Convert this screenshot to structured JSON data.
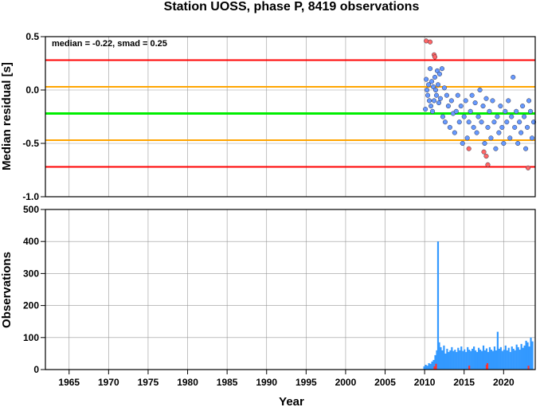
{
  "chart_data": [
    {
      "type": "scatter",
      "title": "Station UOSS, phase P, 8419 observations",
      "ylabel": "Median residual [s]",
      "annotation": "median = -0.22, smad = 0.25",
      "xlim": [
        1962,
        2024
      ],
      "ylim": [
        -1.0,
        0.5
      ],
      "yticks": [
        0.5,
        0.0,
        -0.5,
        -1.0
      ],
      "ytick_labels": [
        "0.5",
        "0.0",
        "-0.5",
        "-1.0"
      ],
      "grid": true,
      "reference_lines": [
        {
          "y": 0.28,
          "color": "#ff0000"
        },
        {
          "y": 0.03,
          "color": "#ffa500"
        },
        {
          "y": -0.22,
          "color": "#00ee00"
        },
        {
          "y": -0.47,
          "color": "#ffa500"
        },
        {
          "y": -0.72,
          "color": "#ff0000"
        }
      ],
      "series": [
        {
          "color": "#6699ff",
          "points": [
            [
              2010.1,
              -0.18
            ],
            [
              2010.2,
              0.1
            ],
            [
              2010.3,
              0.0
            ],
            [
              2010.4,
              -0.05
            ],
            [
              2010.5,
              0.05
            ],
            [
              2010.6,
              -0.1
            ],
            [
              2010.7,
              0.2
            ],
            [
              2010.8,
              -0.15
            ],
            [
              2010.9,
              0.08
            ],
            [
              2011.0,
              -0.2
            ],
            [
              2011.1,
              0.03
            ],
            [
              2011.2,
              -0.1
            ],
            [
              2011.3,
              0.12
            ],
            [
              2011.4,
              0.0
            ],
            [
              2011.5,
              -0.05
            ],
            [
              2011.6,
              0.18
            ],
            [
              2011.7,
              0.05
            ],
            [
              2011.8,
              -0.12
            ],
            [
              2011.9,
              0.15
            ],
            [
              2012.0,
              -0.08
            ],
            [
              2012.2,
              0.2
            ],
            [
              2012.3,
              -0.25
            ],
            [
              2012.5,
              0.02
            ],
            [
              2012.6,
              -0.3
            ],
            [
              2012.8,
              -0.05
            ],
            [
              2013.0,
              -0.15
            ],
            [
              2013.2,
              -0.35
            ],
            [
              2013.4,
              -0.1
            ],
            [
              2013.6,
              -0.22
            ],
            [
              2013.8,
              -0.4
            ],
            [
              2014.0,
              -0.2
            ],
            [
              2014.2,
              -0.05
            ],
            [
              2014.4,
              -0.3
            ],
            [
              2014.6,
              -0.15
            ],
            [
              2014.8,
              -0.5
            ],
            [
              2015.0,
              -0.25
            ],
            [
              2015.2,
              -0.1
            ],
            [
              2015.4,
              -0.45
            ],
            [
              2015.6,
              -0.3
            ],
            [
              2015.8,
              -0.2
            ],
            [
              2016.0,
              -0.05
            ],
            [
              2016.2,
              -0.35
            ],
            [
              2016.4,
              -0.12
            ],
            [
              2016.6,
              -0.4
            ],
            [
              2016.8,
              -0.25
            ],
            [
              2017.0,
              0.0
            ],
            [
              2017.2,
              -0.3
            ],
            [
              2017.4,
              -0.15
            ],
            [
              2017.6,
              -0.5
            ],
            [
              2017.8,
              -0.08
            ],
            [
              2018.0,
              -0.35
            ],
            [
              2018.2,
              -0.2
            ],
            [
              2018.4,
              -0.45
            ],
            [
              2018.6,
              -0.1
            ],
            [
              2018.8,
              -0.3
            ],
            [
              2019.0,
              -0.55
            ],
            [
              2019.2,
              -0.25
            ],
            [
              2019.4,
              -0.4
            ],
            [
              2019.6,
              -0.15
            ],
            [
              2019.8,
              -0.35
            ],
            [
              2020.0,
              -0.5
            ],
            [
              2020.2,
              -0.2
            ],
            [
              2020.4,
              -0.3
            ],
            [
              2020.6,
              -0.1
            ],
            [
              2020.8,
              -0.45
            ],
            [
              2021.0,
              -0.25
            ],
            [
              2021.2,
              0.12
            ],
            [
              2021.4,
              -0.35
            ],
            [
              2021.6,
              -0.2
            ],
            [
              2021.8,
              -0.5
            ],
            [
              2022.0,
              -0.3
            ],
            [
              2022.2,
              -0.4
            ],
            [
              2022.4,
              -0.15
            ],
            [
              2022.6,
              -0.25
            ],
            [
              2022.8,
              -0.55
            ],
            [
              2023.0,
              -0.35
            ],
            [
              2023.2,
              -0.1
            ],
            [
              2023.4,
              -0.2
            ],
            [
              2023.6,
              -0.45
            ],
            [
              2023.8,
              -0.3
            ]
          ]
        },
        {
          "color": "#ff6666",
          "points": [
            [
              2010.2,
              0.46
            ],
            [
              2010.7,
              0.45
            ],
            [
              2011.2,
              0.33
            ],
            [
              2011.3,
              0.31
            ],
            [
              2015.6,
              -0.55
            ],
            [
              2017.5,
              -0.58
            ],
            [
              2017.8,
              -0.62
            ],
            [
              2018.0,
              -0.7
            ],
            [
              2023.1,
              -0.73
            ]
          ]
        }
      ]
    },
    {
      "type": "bar",
      "ylabel": "Observations",
      "xlabel": "Year",
      "xlim": [
        1962,
        2024
      ],
      "ylim": [
        0,
        500
      ],
      "xticks": [
        1965,
        1970,
        1975,
        1980,
        1985,
        1990,
        1995,
        2000,
        2005,
        2010,
        2015,
        2020
      ],
      "yticks": [
        0,
        100,
        200,
        300,
        400,
        500
      ],
      "grid": true,
      "series": [
        {
          "color": "#3399ff",
          "points": [
            [
              2010.0,
              10
            ],
            [
              2010.2,
              15
            ],
            [
              2010.4,
              12
            ],
            [
              2010.6,
              20
            ],
            [
              2010.8,
              18
            ],
            [
              2011.0,
              25
            ],
            [
              2011.2,
              30
            ],
            [
              2011.4,
              45
            ],
            [
              2011.6,
              60
            ],
            [
              2011.75,
              400
            ],
            [
              2011.9,
              85
            ],
            [
              2012.1,
              70
            ],
            [
              2012.3,
              60
            ],
            [
              2012.5,
              75
            ],
            [
              2012.7,
              50
            ],
            [
              2012.9,
              65
            ],
            [
              2013.1,
              55
            ],
            [
              2013.3,
              60
            ],
            [
              2013.5,
              70
            ],
            [
              2013.7,
              58
            ],
            [
              2013.9,
              62
            ],
            [
              2014.1,
              55
            ],
            [
              2014.3,
              68
            ],
            [
              2014.5,
              60
            ],
            [
              2014.7,
              72
            ],
            [
              2014.9,
              58
            ],
            [
              2015.1,
              63
            ],
            [
              2015.3,
              55
            ],
            [
              2015.5,
              70
            ],
            [
              2015.7,
              62
            ],
            [
              2015.9,
              58
            ],
            [
              2016.1,
              65
            ],
            [
              2016.3,
              72
            ],
            [
              2016.5,
              60
            ],
            [
              2016.7,
              55
            ],
            [
              2016.9,
              68
            ],
            [
              2017.1,
              62
            ],
            [
              2017.3,
              58
            ],
            [
              2017.5,
              75
            ],
            [
              2017.7,
              60
            ],
            [
              2017.9,
              66
            ],
            [
              2018.1,
              55
            ],
            [
              2018.3,
              70
            ],
            [
              2018.5,
              62
            ],
            [
              2018.7,
              58
            ],
            [
              2018.9,
              72
            ],
            [
              2019.1,
              60
            ],
            [
              2019.3,
              118
            ],
            [
              2019.5,
              65
            ],
            [
              2019.7,
              70
            ],
            [
              2019.9,
              58
            ],
            [
              2020.1,
              62
            ],
            [
              2020.3,
              75
            ],
            [
              2020.5,
              60
            ],
            [
              2020.7,
              68
            ],
            [
              2020.9,
              55
            ],
            [
              2021.1,
              72
            ],
            [
              2021.3,
              65
            ],
            [
              2021.5,
              60
            ],
            [
              2021.7,
              78
            ],
            [
              2021.9,
              70
            ],
            [
              2022.1,
              62
            ],
            [
              2022.3,
              80
            ],
            [
              2022.5,
              68
            ],
            [
              2022.7,
              75
            ],
            [
              2022.9,
              90
            ],
            [
              2023.1,
              85
            ],
            [
              2023.3,
              72
            ],
            [
              2023.5,
              100
            ],
            [
              2023.7,
              88
            ]
          ]
        },
        {
          "color": "#ff3333",
          "points": [
            [
              2011.3,
              10
            ],
            [
              2011.5,
              18
            ],
            [
              2015.7,
              12
            ],
            [
              2017.9,
              15
            ],
            [
              2018.0,
              20
            ],
            [
              2023.2,
              12
            ]
          ]
        }
      ]
    }
  ]
}
